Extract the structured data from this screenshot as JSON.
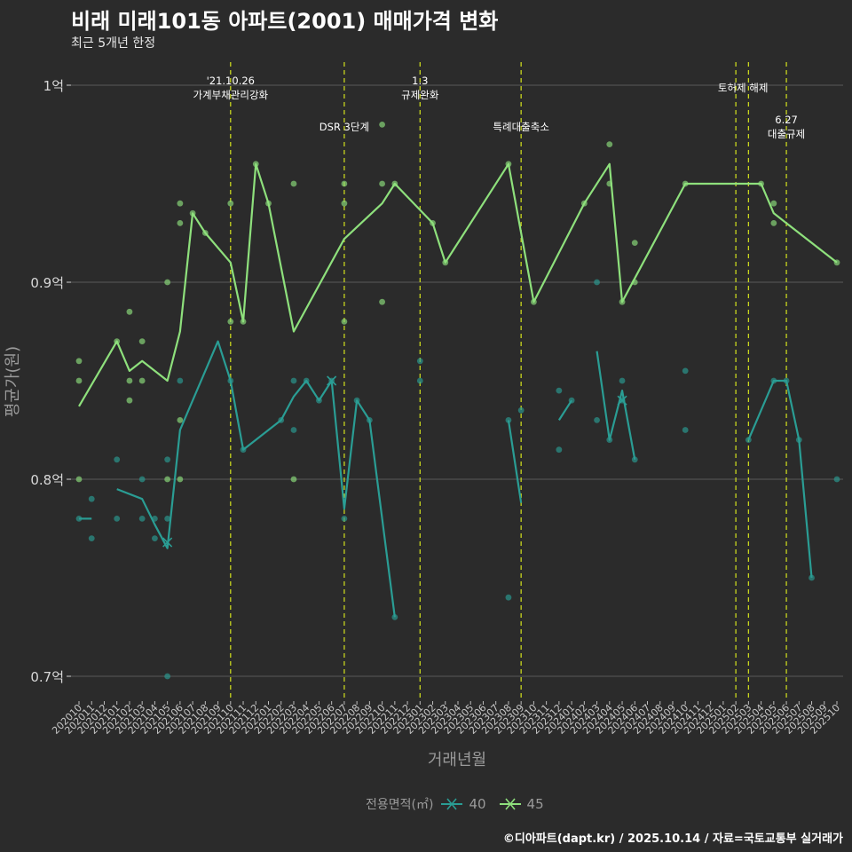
{
  "title": "비래 미래101동 아파트(2001) 매매가격 변화",
  "subtitle": "최근 5개년 한정",
  "legend_title": "전용면적(㎡)",
  "credit": "©디아파트(dapt.kr) / 2025.10.14 / 자료=국토교통부 실거래가",
  "colors": {
    "background": "#2b2b2b",
    "grid": "#5a5a5a",
    "series_40": "#2a9d94",
    "series_45": "#8ee07c",
    "event_line": "#c8d61e",
    "text": "#ffffff",
    "axis_text": "#d8d8d8"
  },
  "chart_data": {
    "type": "line",
    "title": "비래 미래101동 아파트(2001) 매매가격 변화",
    "subtitle": "최근 5개년 한정",
    "xlabel": "거래년월",
    "ylabel": "평균가(원)",
    "y_unit": "억",
    "ylim": [
      0.69,
      1.01
    ],
    "yticks": [
      0.7,
      0.8,
      0.9,
      1.0
    ],
    "ytick_labels": [
      "0.7억",
      "0.8억",
      "0.9억",
      "1억"
    ],
    "categories": [
      "202010",
      "202011",
      "202012",
      "202101",
      "202102",
      "202103",
      "202104",
      "202105",
      "202106",
      "202107",
      "202108",
      "202109",
      "202110",
      "202111",
      "202112",
      "202201",
      "202202",
      "202203",
      "202204",
      "202205",
      "202206",
      "202207",
      "202208",
      "202209",
      "202210",
      "202211",
      "202212",
      "202301",
      "202302",
      "202303",
      "202304",
      "202305",
      "202306",
      "202307",
      "202308",
      "202309",
      "202310",
      "202311",
      "202312",
      "202401",
      "202402",
      "202403",
      "202404",
      "202405",
      "202406",
      "202407",
      "202408",
      "202409",
      "202410",
      "202411",
      "202412",
      "202501",
      "202502",
      "202503",
      "202504",
      "202505",
      "202506",
      "202507",
      "202508",
      "202509",
      "202510"
    ],
    "legend_position": "bottom",
    "events": [
      {
        "x": "202110",
        "label": "'21.10.26\n가계부채관리강화",
        "level": "top"
      },
      {
        "x": "202207",
        "label": "DSR 3단계",
        "level": "mid"
      },
      {
        "x": "202301",
        "label": "1.3\n규제완화",
        "level": "top"
      },
      {
        "x": "202309",
        "label": "특례대출축소",
        "level": "mid"
      },
      {
        "x": "202502",
        "label": "토허제 해제",
        "level": "top"
      },
      {
        "x": "202503",
        "label": "",
        "level": "top"
      },
      {
        "x": "202506",
        "label": "6.27\n대출규제",
        "level": "mid"
      }
    ],
    "series": [
      {
        "name": "40",
        "line": [
          [
            "202010",
            0.78
          ],
          [
            "202011",
            0.78
          ],
          null,
          [
            "202101",
            0.795
          ],
          [
            "202103",
            0.79
          ],
          [
            "202104",
            0.777
          ],
          [
            "202105",
            0.765
          ],
          [
            "202106",
            0.825
          ],
          [
            "202109",
            0.87
          ],
          [
            "202110",
            0.85
          ],
          [
            "202111",
            0.815
          ],
          [
            "202202",
            0.83
          ],
          [
            "202203",
            0.842
          ],
          [
            "202204",
            0.85
          ],
          [
            "202205",
            0.84
          ],
          [
            "202206",
            0.85
          ],
          [
            "202207",
            0.785
          ],
          [
            "202208",
            0.84
          ],
          [
            "202209",
            0.83
          ],
          [
            "202211",
            0.73
          ],
          null,
          [
            "202308",
            0.83
          ],
          [
            "202309",
            0.788
          ],
          null,
          [
            "202312",
            0.83
          ],
          [
            "202401",
            0.84
          ],
          null,
          [
            "202403",
            0.865
          ],
          [
            "202404",
            0.82
          ],
          [
            "202405",
            0.845
          ],
          [
            "202406",
            0.81
          ],
          null,
          [
            "202503",
            0.82
          ],
          [
            "202505",
            0.85
          ],
          [
            "202506",
            0.85
          ],
          [
            "202507",
            0.82
          ],
          [
            "202508",
            0.75
          ]
        ],
        "points": [
          [
            "202010",
            0.78
          ],
          [
            "202011",
            0.79
          ],
          [
            "202011",
            0.77
          ],
          [
            "202101",
            0.81
          ],
          [
            "202101",
            0.78
          ],
          [
            "202103",
            0.8
          ],
          [
            "202103",
            0.78
          ],
          [
            "202104",
            0.78
          ],
          [
            "202104",
            0.77
          ],
          [
            "202105",
            0.81
          ],
          [
            "202105",
            0.78
          ],
          [
            "202105",
            0.7
          ],
          [
            "202106",
            0.85
          ],
          [
            "202110",
            0.85
          ],
          [
            "202111",
            0.815
          ],
          [
            "202202",
            0.83
          ],
          [
            "202203",
            0.85
          ],
          [
            "202203",
            0.825
          ],
          [
            "202204",
            0.85
          ],
          [
            "202205",
            0.84
          ],
          [
            "202206",
            0.85
          ],
          [
            "202207",
            0.78
          ],
          [
            "202208",
            0.84
          ],
          [
            "202209",
            0.83
          ],
          [
            "202211",
            0.73
          ],
          [
            "202301",
            0.86
          ],
          [
            "202301",
            0.85
          ],
          [
            "202308",
            0.83
          ],
          [
            "202308",
            0.74
          ],
          [
            "202309",
            0.835
          ],
          [
            "202312",
            0.845
          ],
          [
            "202312",
            0.815
          ],
          [
            "202401",
            0.84
          ],
          [
            "202403",
            0.9
          ],
          [
            "202403",
            0.83
          ],
          [
            "202404",
            0.82
          ],
          [
            "202405",
            0.85
          ],
          [
            "202405",
            0.84
          ],
          [
            "202406",
            0.81
          ],
          [
            "202410",
            0.855
          ],
          [
            "202410",
            0.825
          ],
          [
            "202503",
            0.82
          ],
          [
            "202505",
            0.85
          ],
          [
            "202506",
            0.85
          ],
          [
            "202507",
            0.82
          ],
          [
            "202508",
            0.75
          ],
          [
            "202510",
            0.8
          ]
        ],
        "crosses": [
          [
            "202105",
            0.768
          ],
          [
            "202206",
            0.85
          ],
          [
            "202405",
            0.84
          ]
        ]
      },
      {
        "name": "45",
        "line": [
          [
            "202010",
            0.837
          ],
          [
            "202101",
            0.87
          ],
          [
            "202102",
            0.855
          ],
          [
            "202103",
            0.86
          ],
          [
            "202105",
            0.85
          ],
          [
            "202106",
            0.875
          ],
          [
            "202107",
            0.935
          ],
          [
            "202108",
            0.925
          ],
          [
            "202110",
            0.91
          ],
          [
            "202111",
            0.88
          ],
          [
            "202112",
            0.96
          ],
          [
            "202201",
            0.94
          ],
          [
            "202203",
            0.875
          ],
          [
            "202207",
            0.922
          ],
          [
            "202210",
            0.94
          ],
          [
            "202211",
            0.95
          ],
          [
            "202302",
            0.93
          ],
          [
            "202303",
            0.91
          ],
          [
            "202308",
            0.96
          ],
          [
            "202310",
            0.89
          ],
          [
            "202402",
            0.94
          ],
          [
            "202404",
            0.96
          ],
          [
            "202405",
            0.89
          ],
          [
            "202410",
            0.95
          ],
          [
            "202504",
            0.95
          ],
          [
            "202505",
            0.935
          ],
          [
            "202510",
            0.91
          ]
        ],
        "points": [
          [
            "202010",
            0.86
          ],
          [
            "202010",
            0.85
          ],
          [
            "202010",
            0.8
          ],
          [
            "202101",
            0.87
          ],
          [
            "202102",
            0.885
          ],
          [
            "202102",
            0.85
          ],
          [
            "202102",
            0.84
          ],
          [
            "202103",
            0.87
          ],
          [
            "202103",
            0.85
          ],
          [
            "202105",
            0.9
          ],
          [
            "202105",
            0.8
          ],
          [
            "202106",
            0.94
          ],
          [
            "202106",
            0.93
          ],
          [
            "202106",
            0.83
          ],
          [
            "202106",
            0.8
          ],
          [
            "202107",
            0.935
          ],
          [
            "202108",
            0.925
          ],
          [
            "202110",
            0.94
          ],
          [
            "202110",
            0.88
          ],
          [
            "202111",
            0.88
          ],
          [
            "202112",
            0.96
          ],
          [
            "202201",
            0.94
          ],
          [
            "202203",
            0.95
          ],
          [
            "202203",
            0.8
          ],
          [
            "202207",
            0.95
          ],
          [
            "202207",
            0.94
          ],
          [
            "202207",
            0.88
          ],
          [
            "202210",
            0.98
          ],
          [
            "202210",
            0.95
          ],
          [
            "202210",
            0.89
          ],
          [
            "202211",
            0.95
          ],
          [
            "202302",
            0.93
          ],
          [
            "202303",
            0.91
          ],
          [
            "202308",
            0.96
          ],
          [
            "202310",
            0.89
          ],
          [
            "202402",
            0.94
          ],
          [
            "202404",
            0.97
          ],
          [
            "202404",
            0.95
          ],
          [
            "202405",
            0.89
          ],
          [
            "202406",
            0.92
          ],
          [
            "202406",
            0.9
          ],
          [
            "202410",
            0.95
          ],
          [
            "202504",
            0.95
          ],
          [
            "202505",
            0.94
          ],
          [
            "202505",
            0.93
          ],
          [
            "202510",
            0.91
          ]
        ],
        "crosses": []
      }
    ]
  }
}
